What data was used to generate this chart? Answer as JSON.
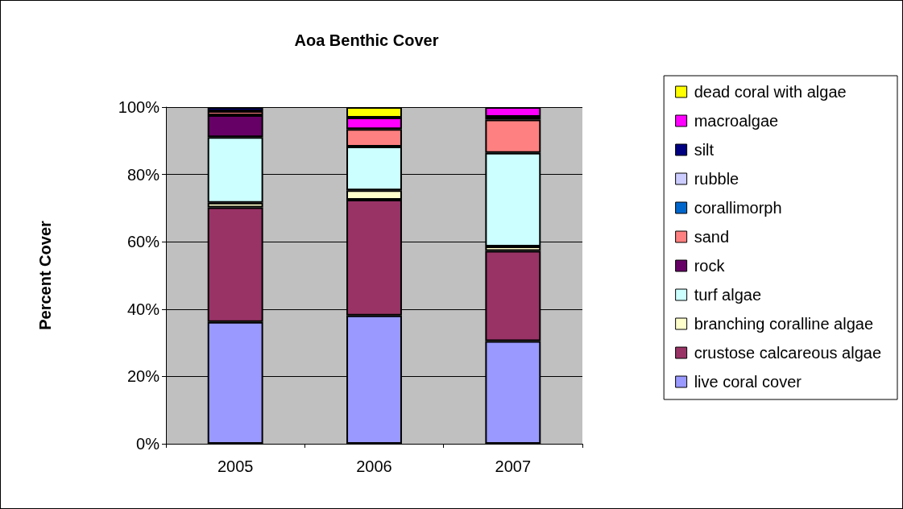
{
  "chart_data": {
    "type": "bar",
    "title": "Aoa Benthic Cover",
    "ylabel": "Percent Cover",
    "categories": [
      "2005",
      "2006",
      "2007"
    ],
    "stacked": true,
    "series": [
      {
        "name": "live coral cover",
        "color": "#9999ff",
        "values": [
          36.2,
          38.1,
          30.5
        ]
      },
      {
        "name": "crustose calcareous algae",
        "color": "#993366",
        "values": [
          34.0,
          34.4,
          26.8
        ]
      },
      {
        "name": "branching coralline algae",
        "color": "#ffffcc",
        "values": [
          1.4,
          2.8,
          1.3
        ]
      },
      {
        "name": "turf algae",
        "color": "#ccffff",
        "values": [
          19.5,
          13.0,
          27.8
        ]
      },
      {
        "name": "rock",
        "color": "#660066",
        "values": [
          6.5,
          null,
          null
        ]
      },
      {
        "name": "sand",
        "color": "#ff8080",
        "values": [
          1.2,
          5.2,
          9.9
        ]
      },
      {
        "name": "corallimorph",
        "color": "#0066cc",
        "values": [
          null,
          null,
          null
        ]
      },
      {
        "name": "rubble",
        "color": "#ccccff",
        "values": [
          null,
          null,
          null
        ]
      },
      {
        "name": "silt",
        "color": "#000080",
        "values": [
          1.2,
          null,
          0.8
        ]
      },
      {
        "name": "macroalgae",
        "color": "#ff00ff",
        "values": [
          null,
          3.4,
          2.9
        ]
      },
      {
        "name": "dead coral with algae",
        "color": "#ffff00",
        "values": [
          null,
          3.1,
          null
        ]
      }
    ],
    "ylim": [
      0,
      100
    ],
    "yticks": [
      {
        "value": 0,
        "label": "0%"
      },
      {
        "value": 20,
        "label": "20%"
      },
      {
        "value": 40,
        "label": "40%"
      },
      {
        "value": 60,
        "label": "60%"
      },
      {
        "value": 80,
        "label": "80%"
      },
      {
        "value": 100,
        "label": "100%"
      }
    ],
    "grid": "y",
    "legend": "right"
  }
}
